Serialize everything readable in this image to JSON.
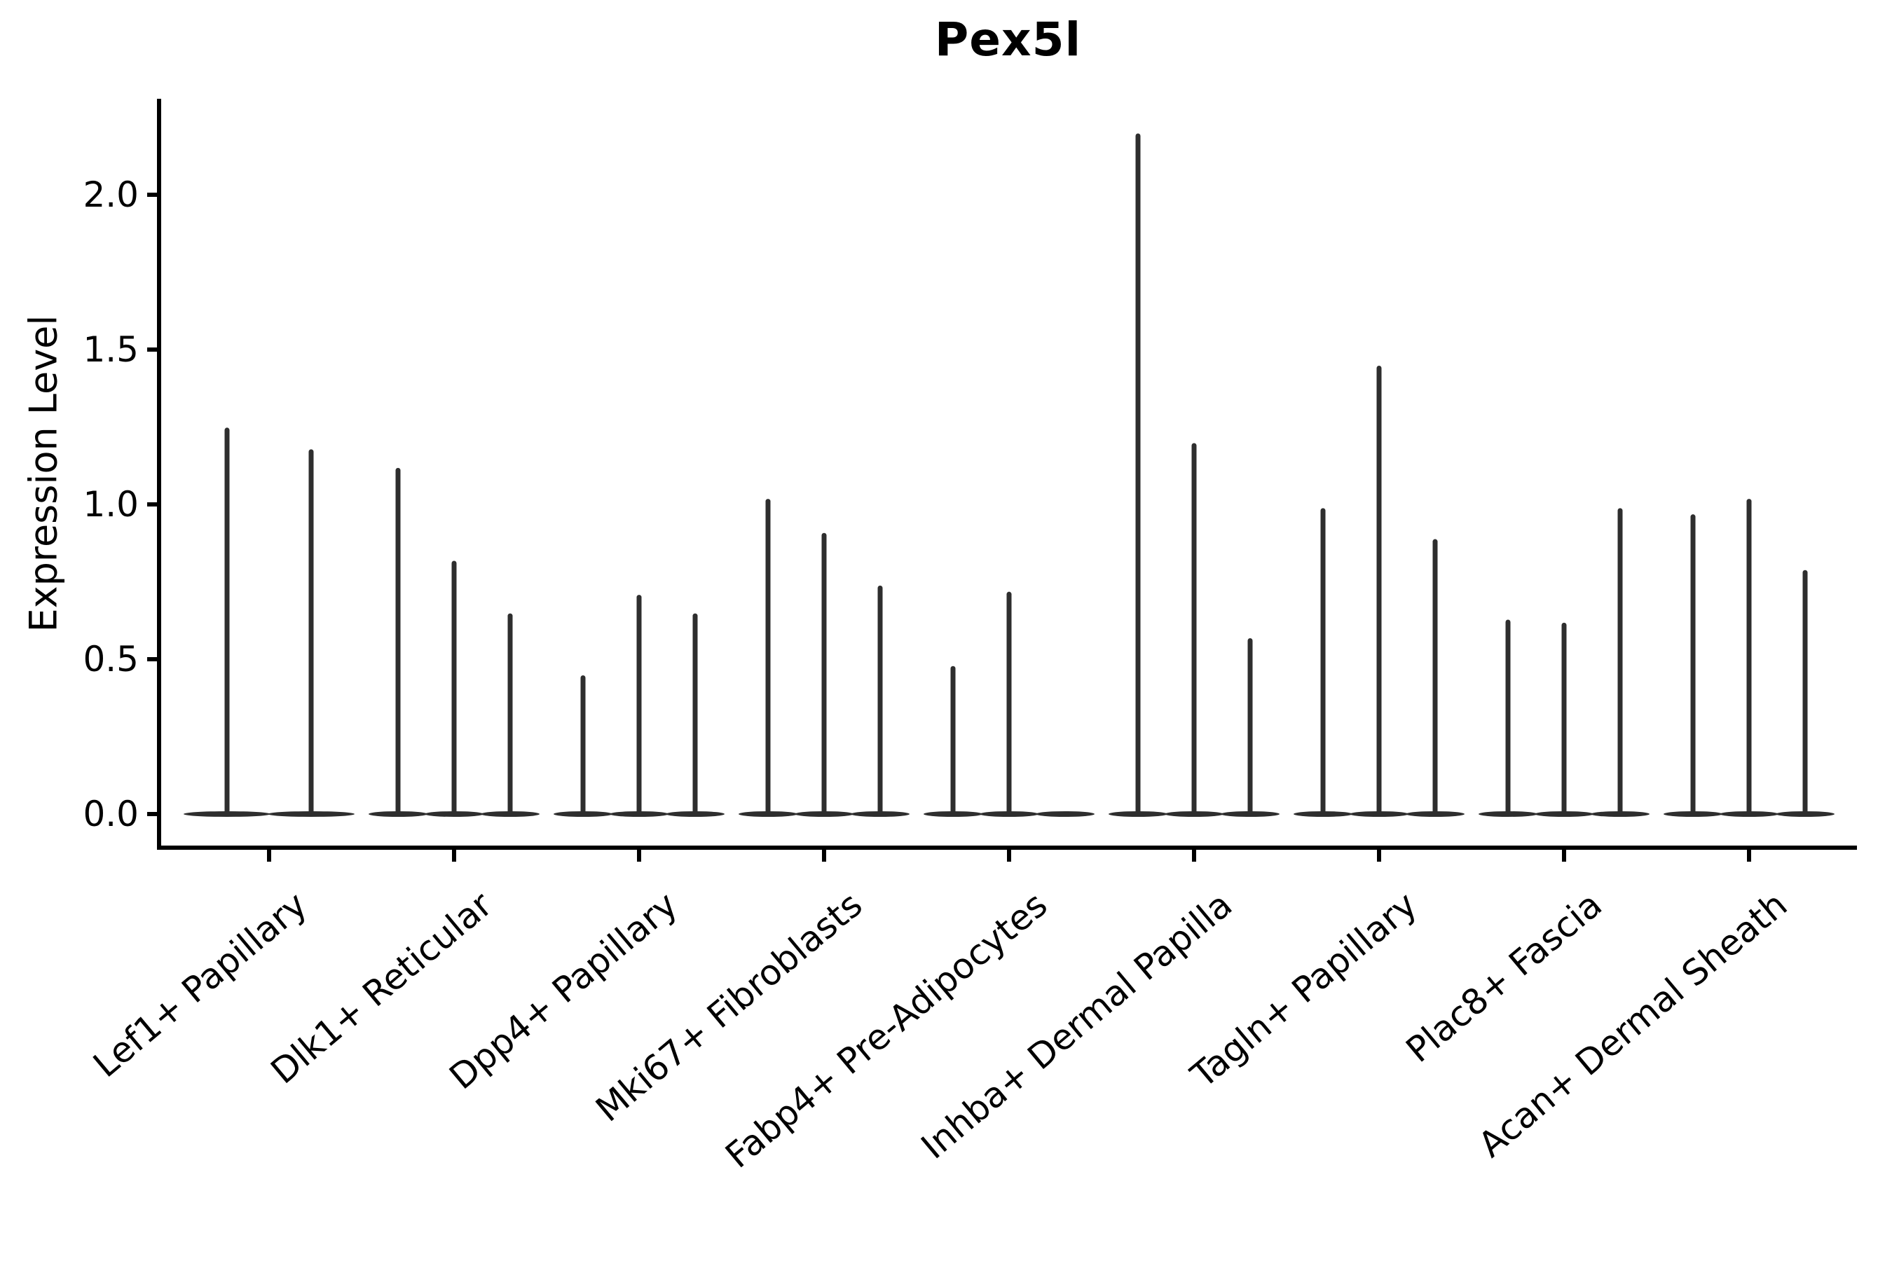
{
  "title": "Pex5l",
  "axes": {
    "ylabel": "Expression Level",
    "ytick_labels": [
      "0.0",
      "0.5",
      "1.0",
      "1.5",
      "2.0"
    ]
  },
  "chart_data": {
    "type": "violin",
    "title": "Pex5l",
    "subtitle": "",
    "xlabel": "",
    "ylabel": "Expression Level",
    "ylim": [
      -0.11,
      2.31
    ],
    "yticks": [
      0.0,
      0.5,
      1.0,
      1.5,
      2.0
    ],
    "grid": false,
    "legend_position": "none",
    "violin_color": "#2e2e2e",
    "axis_color": "#000000",
    "categories": [
      "Lef1+ Papillary",
      "Dlk1+ Reticular",
      "Dpp4+ Papillary",
      "Mki67+ Fibroblasts",
      "Fabp4+ Pre-Adipocytes",
      "Inhba+ Dermal Papilla",
      "Tagln+ Papillary",
      "Plac8+ Fascia",
      "Acan+ Dermal Sheath"
    ],
    "groups": [
      {
        "category": "Lef1+ Papillary",
        "violin_max_expression": [
          1.24,
          1.17
        ]
      },
      {
        "category": "Dlk1+ Reticular",
        "violin_max_expression": [
          1.11,
          0.81,
          0.64
        ]
      },
      {
        "category": "Dpp4+ Papillary",
        "violin_max_expression": [
          0.44,
          0.7,
          0.64
        ]
      },
      {
        "category": "Mki67+ Fibroblasts",
        "violin_max_expression": [
          1.01,
          0.9,
          0.73
        ]
      },
      {
        "category": "Fabp4+ Pre-Adipocytes",
        "violin_max_expression": [
          0.47,
          0.71,
          0.0
        ]
      },
      {
        "category": "Inhba+ Dermal Papilla",
        "violin_max_expression": [
          2.19,
          1.19,
          0.56
        ]
      },
      {
        "category": "Tagln+ Papillary",
        "violin_max_expression": [
          0.98,
          1.44,
          0.88
        ]
      },
      {
        "category": "Plac8+ Fascia",
        "violin_max_expression": [
          0.62,
          0.61,
          0.98
        ]
      },
      {
        "category": "Acan+ Dermal Sheath",
        "violin_max_expression": [
          0.96,
          1.01,
          0.78
        ]
      }
    ]
  }
}
